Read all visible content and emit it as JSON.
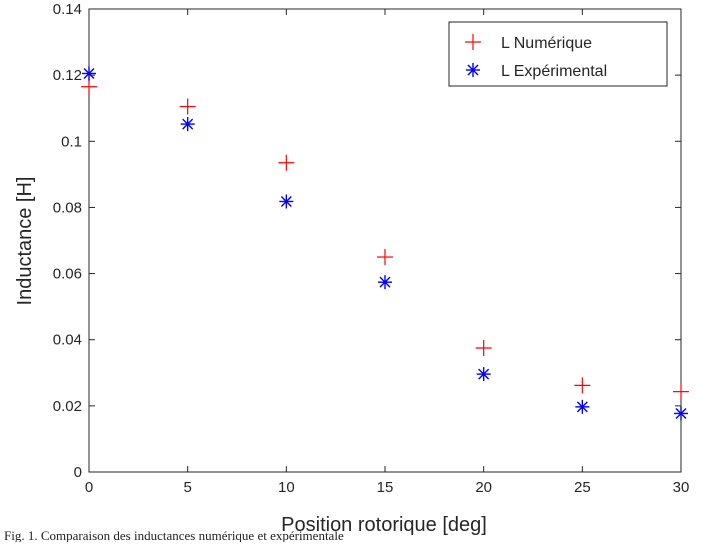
{
  "chart_data": {
    "type": "scatter",
    "title": "",
    "xlabel": "Position rotorique [deg]",
    "ylabel": "Inductance [H]",
    "xlim": [
      0,
      30
    ],
    "ylim": [
      0,
      0.14
    ],
    "x_ticks": [
      0,
      5,
      10,
      15,
      20,
      25,
      30
    ],
    "y_ticks": [
      0,
      0.02,
      0.04,
      0.06,
      0.08,
      0.1,
      0.12,
      0.14
    ],
    "grid": false,
    "legend_position": "top-right",
    "series": [
      {
        "name": "L Numérique",
        "marker": "plus",
        "color": "#ff0000",
        "x": [
          0,
          5,
          10,
          15,
          20,
          25,
          30
        ],
        "y": [
          0.1165,
          0.1105,
          0.0935,
          0.065,
          0.0375,
          0.0262,
          0.0243
        ]
      },
      {
        "name": "L Expérimental",
        "marker": "asterisk",
        "color": "#0000ff",
        "x": [
          0,
          5,
          10,
          15,
          20,
          25,
          30
        ],
        "y": [
          0.1205,
          0.1052,
          0.0818,
          0.0574,
          0.0296,
          0.0197,
          0.0177
        ]
      }
    ]
  },
  "caption": "Fig. 1. Comparaison des inductances numérique et expérimentale"
}
